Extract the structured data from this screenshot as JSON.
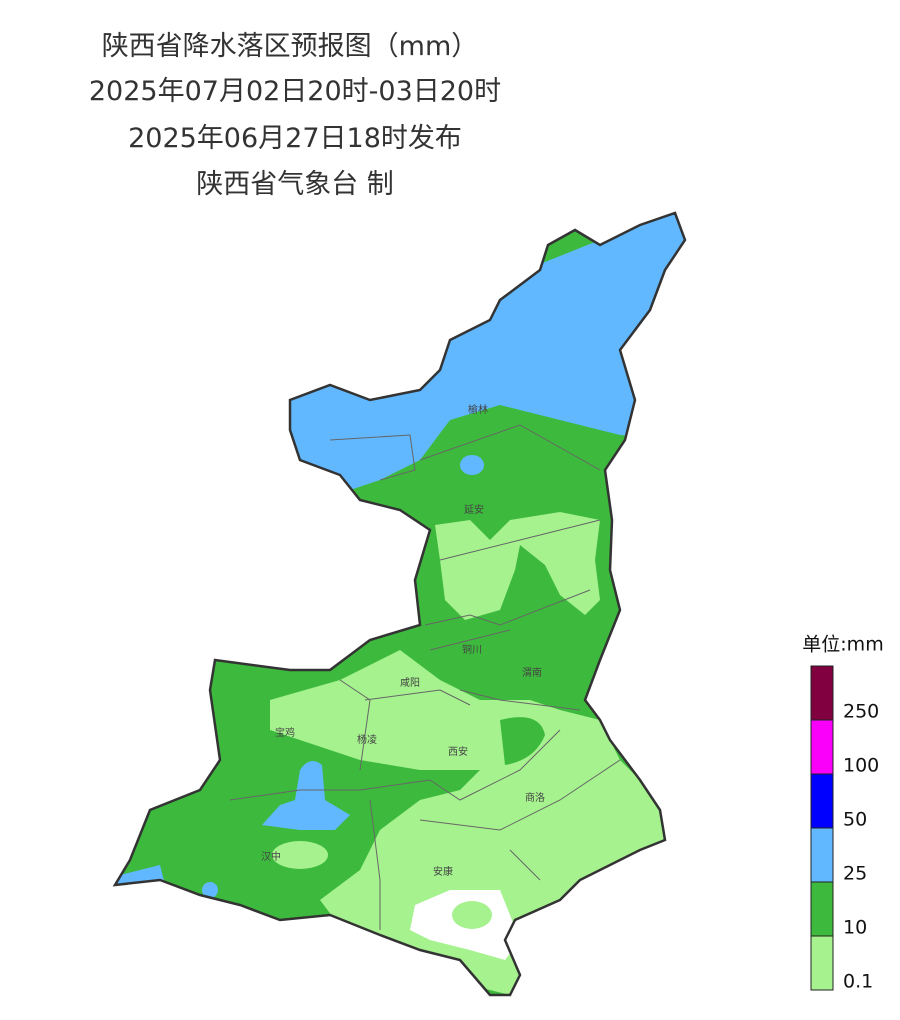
{
  "header": {
    "title": "陕西省降水落区预报图（mm）",
    "period": "2025年07月02日20时-03日20时",
    "issued": "2025年06月27日18时发布",
    "issuer": "陕西省气象台 制"
  },
  "cities": [
    "榆林",
    "延安",
    "铜川",
    "咸阳",
    "渭南",
    "宝鸡",
    "杨凌",
    "西安",
    "商洛",
    "汉中",
    "安康"
  ],
  "legend": {
    "unit": "单位:mm",
    "labels": [
      "0.1",
      "10",
      "25",
      "50",
      "100",
      "250"
    ],
    "colors": [
      "#a6f28f",
      "#3dba3d",
      "#61b8ff",
      "#0000fe",
      "#fa00fa",
      "#800040"
    ]
  }
}
